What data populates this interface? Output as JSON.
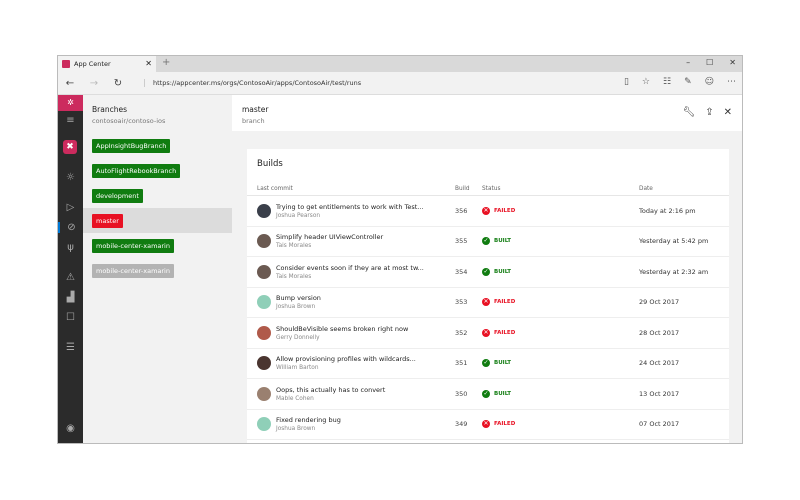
{
  "browser": {
    "tab_title": "App Center",
    "url": "https://appcenter.ms/orgs/ContosoAir/apps/ContosoAir/test/runs",
    "new_tab": "+",
    "close": "✕",
    "win": [
      "–",
      "☐",
      "✕"
    ]
  },
  "branches_panel": {
    "title": "Branches",
    "subtitle": "contosoair/contoso-ios",
    "items": [
      {
        "label": "AppInsightBugBranch",
        "color": "#107c10"
      },
      {
        "label": "AutoFlightRebookBranch",
        "color": "#107c10"
      },
      {
        "label": "development",
        "color": "#107c10"
      },
      {
        "label": "master",
        "color": "#e81123",
        "selected": true
      },
      {
        "label": "mobile-center-xamarin",
        "color": "#107c10"
      },
      {
        "label": "mobile-center-xamarin",
        "color": "#b3b3b3"
      }
    ]
  },
  "main": {
    "title": "master",
    "subtitle": "branch",
    "card_title": "Builds",
    "columns": [
      "Last commit",
      "Build",
      "Status",
      "Date"
    ],
    "builds": [
      {
        "message": "Trying to get entitlements to work with Test...",
        "author": "Joshua Pearson",
        "build": "356",
        "status": "FAILED",
        "date": "Today at 2:16 pm",
        "avatar": "#3a3f4a"
      },
      {
        "message": "Simplify header UIViewController",
        "author": "Tais Morales",
        "build": "355",
        "status": "BUILT",
        "date": "Yesterday at 5:42 pm",
        "avatar": "#6b5a52"
      },
      {
        "message": "Consider events soon if they are at most tw...",
        "author": "Tais Morales",
        "build": "354",
        "status": "BUILT",
        "date": "Yesterday at 2:32 am",
        "avatar": "#6b5a52"
      },
      {
        "message": "Bump version",
        "author": "Joshua Brown",
        "build": "353",
        "status": "FAILED",
        "date": "29 Oct 2017",
        "avatar": "#8fcfb8"
      },
      {
        "message": "ShouldBeVisible seems broken right now",
        "author": "Gerry Donnelly",
        "build": "352",
        "status": "FAILED",
        "date": "28 Oct 2017",
        "avatar": "#b05a4a"
      },
      {
        "message": "Allow provisioning profiles with wildcards...",
        "author": "William Barton",
        "build": "351",
        "status": "BUILT",
        "date": "24 Oct 2017",
        "avatar": "#4a3530"
      },
      {
        "message": "Oops, this actually has to convert",
        "author": "Mable Cohen",
        "build": "350",
        "status": "BUILT",
        "date": "13 Oct 2017",
        "avatar": "#9a8070"
      },
      {
        "message": "Fixed rendering bug",
        "author": "Joshua Brown",
        "build": "349",
        "status": "FAILED",
        "date": "07 Oct 2017",
        "avatar": "#8fcfb8"
      }
    ]
  },
  "colors": {
    "failed": "#e81123",
    "built": "#107c10",
    "brand": "#cc2b5e"
  }
}
